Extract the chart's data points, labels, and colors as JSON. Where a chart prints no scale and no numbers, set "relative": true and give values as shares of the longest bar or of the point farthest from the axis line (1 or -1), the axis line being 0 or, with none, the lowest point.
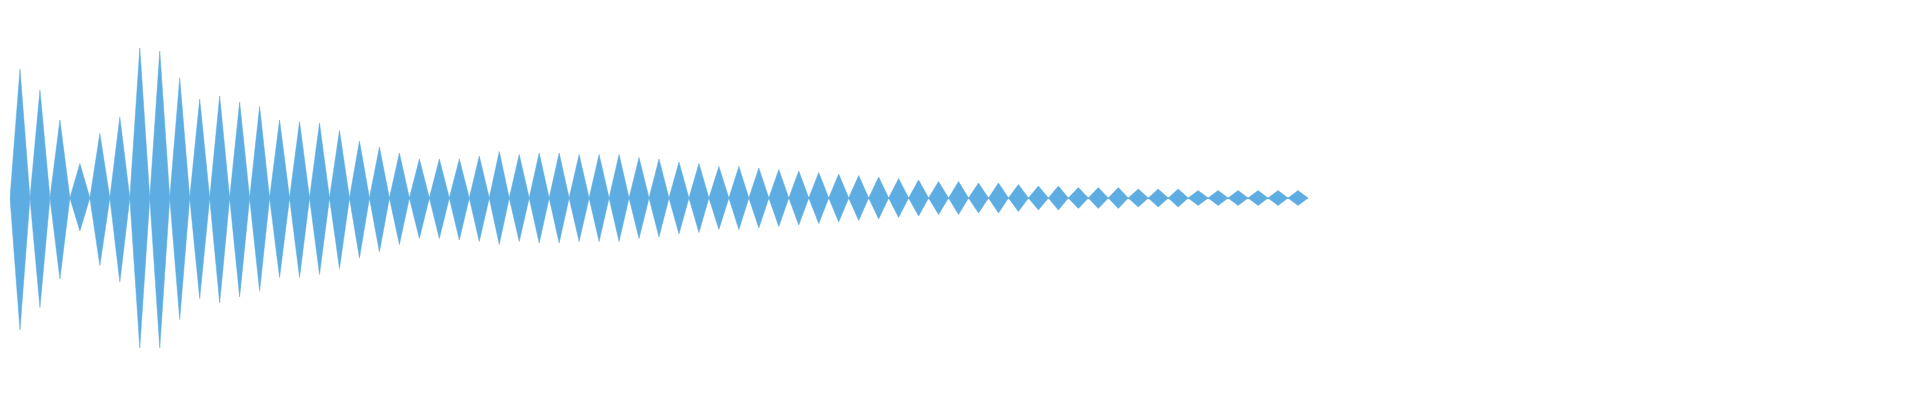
{
  "chart_data": {
    "type": "area",
    "relative": true,
    "tick_labels": false,
    "categories": [
      null,
      null,
      null,
      null,
      null,
      null,
      null,
      null,
      null,
      null,
      null,
      null,
      null,
      null,
      null,
      null,
      null,
      null,
      null,
      null,
      null,
      null,
      null,
      null,
      null,
      null,
      null,
      null,
      null,
      null,
      null,
      null,
      null,
      null,
      null,
      null,
      null,
      null,
      null,
      null,
      null,
      null,
      null,
      null,
      null,
      null,
      null,
      null,
      null,
      null,
      null,
      null,
      null,
      null,
      null,
      null,
      null,
      null,
      null,
      null,
      null,
      null,
      null,
      null,
      null,
      null,
      null,
      null,
      null,
      null,
      null,
      null,
      null,
      null,
      null,
      null,
      null,
      null,
      null,
      null,
      null,
      null,
      null,
      null,
      null,
      null,
      null,
      null,
      null,
      null,
      null,
      null,
      null,
      null,
      null,
      null,
      null,
      null,
      null,
      null,
      null,
      null,
      null,
      null,
      null,
      null,
      null,
      null,
      null,
      null,
      null,
      null,
      null,
      null,
      null,
      null,
      null,
      null,
      null,
      null,
      null,
      null,
      null,
      null,
      null,
      null,
      null,
      null,
      null,
      null,
      null
    ],
    "series": [
      {
        "color": "#5dade2",
        "values": [
          0,
          0.86,
          0,
          0.72,
          0,
          0.52,
          0,
          0.23,
          0,
          0.43,
          0,
          0.54,
          0,
          1.0,
          0,
          0.98,
          0,
          0.8,
          0,
          0.66,
          0,
          0.68,
          0,
          0.64,
          0,
          0.61,
          0,
          0.52,
          0,
          0.51,
          0,
          0.5,
          0,
          0.45,
          0,
          0.38,
          0,
          0.34,
          0,
          0.3,
          0,
          0.26,
          0,
          0.26,
          0,
          0.26,
          0,
          0.28,
          0,
          0.31,
          0,
          0.29,
          0,
          0.3,
          0,
          0.3,
          0,
          0.29,
          0,
          0.29,
          0,
          0.29,
          0,
          0.27,
          0,
          0.26,
          0,
          0.24,
          0,
          0.23,
          0,
          0.21,
          0,
          0.21,
          0,
          0.2,
          0,
          0.19,
          0,
          0.18,
          0,
          0.17,
          0,
          0.16,
          0,
          0.15,
          0,
          0.14,
          0,
          0.13,
          0,
          0.12,
          0,
          0.11,
          0,
          0.11,
          0,
          0.1,
          0,
          0.1,
          0,
          0.09,
          0,
          0.08,
          0,
          0.08,
          0,
          0.07,
          0,
          0.07,
          0,
          0.07,
          0,
          0.06,
          0,
          0.06,
          0,
          0.06,
          0,
          0.05,
          0,
          0.05,
          0,
          0.05,
          0,
          0.05,
          0,
          0.05,
          0,
          0.05,
          0
        ]
      },
      {
        "color": "#5dade2",
        "values": [
          0,
          -0.88,
          0,
          -0.73,
          0,
          -0.54,
          0,
          -0.22,
          0,
          -0.45,
          0,
          -0.56,
          0,
          -1.0,
          0,
          -1.0,
          0,
          -0.81,
          0,
          -0.67,
          0,
          -0.7,
          0,
          -0.66,
          0,
          -0.62,
          0,
          -0.53,
          0,
          -0.53,
          0,
          -0.51,
          0,
          -0.47,
          0,
          -0.4,
          0,
          -0.36,
          0,
          -0.31,
          0,
          -0.27,
          0,
          -0.27,
          0,
          -0.28,
          0,
          -0.29,
          0,
          -0.31,
          0,
          -0.29,
          0,
          -0.3,
          0,
          -0.3,
          0,
          -0.29,
          0,
          -0.29,
          0,
          -0.29,
          0,
          -0.27,
          0,
          -0.26,
          0,
          -0.24,
          0,
          -0.23,
          0,
          -0.21,
          0,
          -0.21,
          0,
          -0.2,
          0,
          -0.19,
          0,
          -0.18,
          0,
          -0.17,
          0,
          -0.16,
          0,
          -0.15,
          0,
          -0.14,
          0,
          -0.13,
          0,
          -0.12,
          0,
          -0.11,
          0,
          -0.11,
          0,
          -0.1,
          0,
          -0.1,
          0,
          -0.09,
          0,
          -0.08,
          0,
          -0.08,
          0,
          -0.07,
          0,
          -0.07,
          0,
          -0.07,
          0,
          -0.06,
          0,
          -0.06,
          0,
          -0.06,
          0,
          -0.05,
          0,
          -0.05,
          0,
          -0.05,
          0,
          -0.05,
          0,
          -0.05,
          0,
          -0.05,
          0
        ]
      }
    ]
  }
}
